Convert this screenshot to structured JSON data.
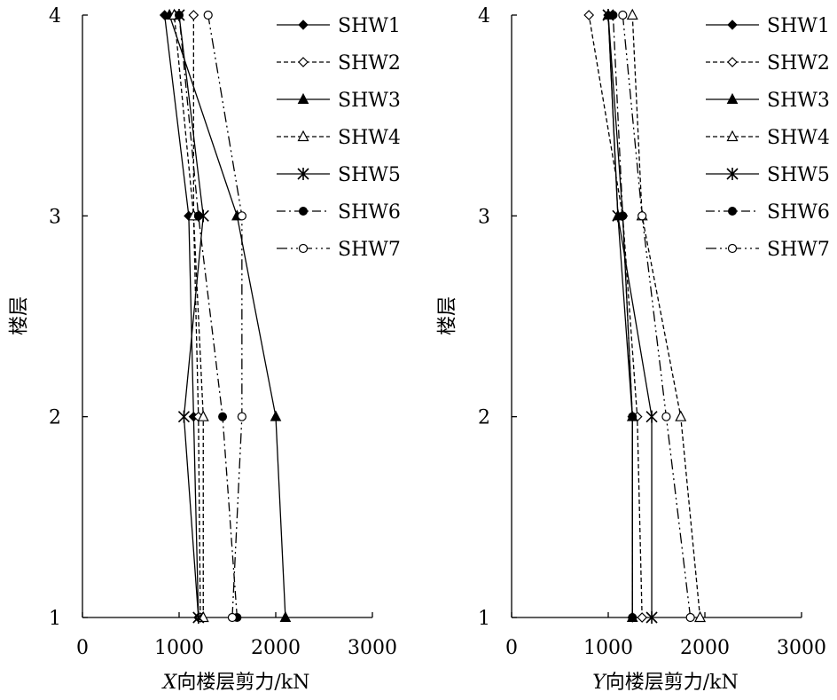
{
  "chart_data": [
    {
      "type": "line",
      "title": "",
      "xlabel_italic": "X",
      "xlabel": "向楼层剪力/kN",
      "ylabel": "楼层",
      "xlim": [
        0,
        3000
      ],
      "ylim": [
        1,
        4
      ],
      "xticks": [
        "0",
        "1000",
        "2000",
        "3000"
      ],
      "yticks": [
        "1",
        "2",
        "3",
        "4"
      ],
      "grid": false,
      "legend_position": "top-right",
      "series": [
        {
          "name": "SHW1",
          "line": "solid",
          "marker": "diamond-filled",
          "x": [
            1200,
            1150,
            1100,
            850
          ],
          "y": [
            1,
            2,
            3,
            4
          ]
        },
        {
          "name": "SHW2",
          "line": "dashed",
          "marker": "diamond-open",
          "x": [
            1220,
            1200,
            1150,
            1150
          ],
          "y": [
            1,
            2,
            3,
            4
          ]
        },
        {
          "name": "SHW3",
          "line": "solid",
          "marker": "triangle-filled",
          "x": [
            2100,
            2000,
            1600,
            900
          ],
          "y": [
            1,
            2,
            3,
            4
          ]
        },
        {
          "name": "SHW4",
          "line": "dashed",
          "marker": "triangle-open",
          "x": [
            1250,
            1250,
            1150,
            950
          ],
          "y": [
            1,
            2,
            3,
            4
          ]
        },
        {
          "name": "SHW5",
          "line": "solid",
          "marker": "asterisk",
          "x": [
            1200,
            1050,
            1250,
            1000
          ],
          "y": [
            1,
            2,
            3,
            4
          ]
        },
        {
          "name": "SHW6",
          "line": "dash-dot",
          "marker": "circle-filled",
          "x": [
            1600,
            1450,
            1200,
            1000
          ],
          "y": [
            1,
            2,
            3,
            4
          ]
        },
        {
          "name": "SHW7",
          "line": "dash-dot-dot",
          "marker": "circle-open",
          "x": [
            1550,
            1650,
            1650,
            1300
          ],
          "y": [
            1,
            2,
            3,
            4
          ]
        }
      ]
    },
    {
      "type": "line",
      "title": "",
      "xlabel_italic": "Y",
      "xlabel": "向楼层剪力/kN",
      "ylabel": "楼层",
      "xlim": [
        0,
        3000
      ],
      "ylim": [
        1,
        4
      ],
      "xticks": [
        "0",
        "1000",
        "2000",
        "3000"
      ],
      "yticks": [
        "1",
        "2",
        "3",
        "4"
      ],
      "grid": false,
      "legend_position": "top-right",
      "series": [
        {
          "name": "SHW1",
          "line": "solid",
          "marker": "diamond-filled",
          "x": [
            1250,
            1250,
            1150,
            1000
          ],
          "y": [
            1,
            2,
            3,
            4
          ]
        },
        {
          "name": "SHW2",
          "line": "dashed",
          "marker": "diamond-open",
          "x": [
            1350,
            1300,
            1150,
            800
          ],
          "y": [
            1,
            2,
            3,
            4
          ]
        },
        {
          "name": "SHW3",
          "line": "solid",
          "marker": "triangle-filled",
          "x": [
            1250,
            1250,
            1100,
            1000
          ],
          "y": [
            1,
            2,
            3,
            4
          ]
        },
        {
          "name": "SHW4",
          "line": "dashed",
          "marker": "triangle-open",
          "x": [
            1950,
            1750,
            1350,
            1250
          ],
          "y": [
            1,
            2,
            3,
            4
          ]
        },
        {
          "name": "SHW5",
          "line": "solid",
          "marker": "asterisk",
          "x": [
            1450,
            1450,
            1100,
            1000
          ],
          "y": [
            1,
            2,
            3,
            4
          ]
        },
        {
          "name": "SHW6",
          "line": "dash-dot",
          "marker": "circle-filled",
          "x": [
            1250,
            1250,
            1150,
            1050
          ],
          "y": [
            1,
            2,
            3,
            4
          ]
        },
        {
          "name": "SHW7",
          "line": "dash-dot-dot",
          "marker": "circle-open",
          "x": [
            1850,
            1600,
            1350,
            1150
          ],
          "y": [
            1,
            2,
            3,
            4
          ]
        }
      ]
    }
  ]
}
